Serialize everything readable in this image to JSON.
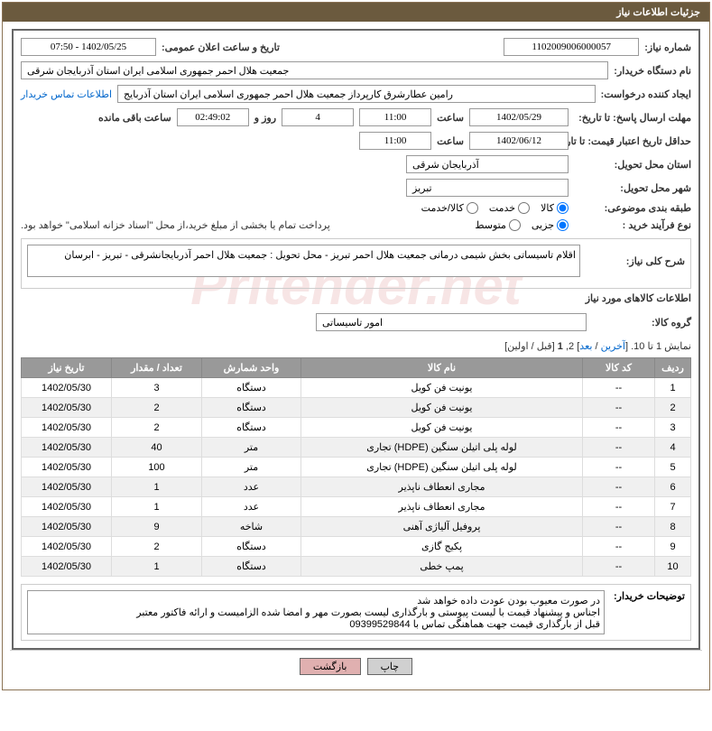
{
  "panel_title": "جزئیات اطلاعات نیاز",
  "labels": {
    "need_number": "شماره نیاز:",
    "announce_date": "تاریخ و ساعت اعلان عمومی:",
    "buyer_org": "نام دستگاه خریدار:",
    "requester": "ایجاد کننده درخواست:",
    "contact_link": "اطلاعات تماس خریدار",
    "response_deadline": "مهلت ارسال پاسخ: تا تاریخ:",
    "time_label": "ساعت",
    "days_and": "روز و",
    "time_remaining": "ساعت باقی مانده",
    "price_validity": "حداقل تاریخ اعتبار قیمت: تا تاریخ:",
    "delivery_province": "استان محل تحویل:",
    "delivery_city": "شهر محل تحویل:",
    "category": "طبقه بندی موضوعی:",
    "purchase_type": "نوع فرآیند خرید :",
    "payment_note": "پرداخت تمام یا بخشی از مبلغ خرید،از محل \"اسناد خزانه اسلامی\" خواهد بود.",
    "need_desc_label": "شرح کلی نیاز:",
    "goods_info_title": "اطلاعات کالاهای مورد نیاز",
    "goods_group_label": "گروه کالا:",
    "buyer_notes_label": "توضیحات خریدار:"
  },
  "values": {
    "need_number": "1102009006000057",
    "announce_date": "1402/05/25 - 07:50",
    "buyer_org": "جمعیت هلال احمر جمهوری اسلامی ایران استان آذربایجان شرقی",
    "requester": "رامین عطارشرق کارپرداز جمعیت هلال احمر جمهوری اسلامی ایران استان آذربایج",
    "response_date": "1402/05/29",
    "response_time": "11:00",
    "days_remaining": "4",
    "countdown": "02:49:02",
    "price_validity_date": "1402/06/12",
    "price_validity_time": "11:00",
    "province": "آذربایجان شرقی",
    "city": "تبریز",
    "need_desc": "اقلام تاسیساتی بخش شیمی درمانی جمعیت هلال احمر تبریز - محل تحویل : جمعیت هلال احمر آذربایجانشرقی - تبریز - ابرسان",
    "goods_group": "امور تاسیساتی",
    "buyer_notes": "در صورت معیوب بودن عودت داده خواهد شد\nاجناس و پیشنهاد قیمت با لیست پیوستی و بارگذاری لیست بصورت مهر و امضا شده الزامیست و ارائه فاکتور معتبر\nقبل از بارگذاری قیمت جهت هماهنگی تماس با   09399529844"
  },
  "radios": {
    "category": {
      "options": [
        "کالا",
        "خدمت",
        "کالا/خدمت"
      ],
      "selected": 0
    },
    "purchase_type": {
      "options": [
        "جزیی",
        "متوسط"
      ],
      "selected": 0
    }
  },
  "pager": {
    "text_prefix": "نمایش 1 تا 10. [",
    "last": "آخرین",
    "sep1": " / ",
    "next": "بعد",
    "mid": "] 2, ",
    "current": "1",
    "suffix": " [قبل / اولین]"
  },
  "table": {
    "headers": [
      "ردیف",
      "کد کالا",
      "نام کالا",
      "واحد شمارش",
      "تعداد / مقدار",
      "تاریخ نیاز"
    ],
    "rows": [
      [
        "1",
        "--",
        "یونیت فن کویل",
        "دستگاه",
        "3",
        "1402/05/30"
      ],
      [
        "2",
        "--",
        "یونیت فن کویل",
        "دستگاه",
        "2",
        "1402/05/30"
      ],
      [
        "3",
        "--",
        "یونیت فن کویل",
        "دستگاه",
        "2",
        "1402/05/30"
      ],
      [
        "4",
        "--",
        "لوله پلی اتیلن سنگین (HDPE) تجاری",
        "متر",
        "40",
        "1402/05/30"
      ],
      [
        "5",
        "--",
        "لوله پلی اتیلن سنگین (HDPE) تجاری",
        "متر",
        "100",
        "1402/05/30"
      ],
      [
        "6",
        "--",
        "مجاری انعطاف ناپذیر",
        "عدد",
        "1",
        "1402/05/30"
      ],
      [
        "7",
        "--",
        "مجاری انعطاف ناپذیر",
        "عدد",
        "1",
        "1402/05/30"
      ],
      [
        "8",
        "--",
        "پروفیل آلیاژی آهنی",
        "شاخه",
        "9",
        "1402/05/30"
      ],
      [
        "9",
        "--",
        "پکیج گازی",
        "دستگاه",
        "2",
        "1402/05/30"
      ],
      [
        "10",
        "--",
        "پمپ خطی",
        "دستگاه",
        "1",
        "1402/05/30"
      ]
    ]
  },
  "buttons": {
    "print": "چاپ",
    "back": "بازگشت"
  },
  "watermark": "Pritender.net"
}
